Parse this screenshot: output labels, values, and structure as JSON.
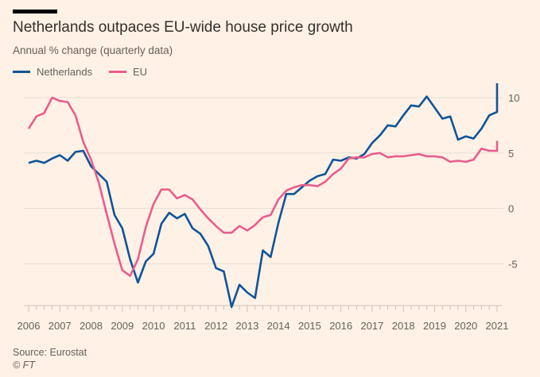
{
  "chart_data": {
    "type": "line",
    "title": "Netherlands outpaces EU-wide house price growth",
    "subtitle": "Annual % change (quarterly data)",
    "xlabel": "",
    "ylabel": "",
    "x_start": 2006,
    "x_step": 0.25,
    "xlim": [
      2006,
      2021
    ],
    "ylim": [
      -9,
      12
    ],
    "x_ticks": [
      "2006",
      "2007",
      "2008",
      "2009",
      "2010",
      "2011",
      "2012",
      "2013",
      "2014",
      "2015",
      "2016",
      "2017",
      "2018",
      "2019",
      "2020",
      "2021"
    ],
    "y_ticks": [
      "10",
      "5",
      "0",
      "-5"
    ],
    "grid": true,
    "legend_position": "top-left",
    "series": [
      {
        "name": "Netherlands",
        "color": "#0f5499",
        "values": [
          4.1,
          4.3,
          4.1,
          4.5,
          4.8,
          4.3,
          5.1,
          5.2,
          3.8,
          3.1,
          2.4,
          -0.6,
          -1.8,
          -4.6,
          -6.7,
          -4.8,
          -4.1,
          -1.4,
          -0.4,
          -0.9,
          -0.5,
          -1.8,
          -2.3,
          -3.4,
          -5.4,
          -5.7,
          -8.9,
          -6.9,
          -7.6,
          -8.1,
          -3.8,
          -4.4,
          -1.3,
          1.3,
          1.3,
          1.9,
          2.5,
          2.9,
          3.1,
          4.4,
          4.3,
          4.6,
          4.5,
          4.9,
          5.9,
          6.6,
          7.5,
          7.4,
          8.4,
          9.3,
          9.2,
          10.1,
          9.1,
          8.1,
          8.3,
          6.2,
          6.5,
          6.3,
          7.2,
          8.4,
          8.7,
          11.3
        ]
      },
      {
        "name": "EU",
        "color": "#e95d8c",
        "values": [
          7.2,
          8.3,
          8.6,
          10.0,
          9.7,
          9.6,
          8.4,
          6.0,
          4.4,
          2.3,
          -0.5,
          -3.2,
          -5.6,
          -6.1,
          -4.6,
          -1.7,
          0.4,
          1.7,
          1.7,
          0.9,
          1.2,
          0.8,
          -0.1,
          -0.9,
          -1.6,
          -2.2,
          -2.2,
          -1.6,
          -2.0,
          -1.5,
          -0.8,
          -0.6,
          0.8,
          1.6,
          1.9,
          2.1,
          2.1,
          2.0,
          2.4,
          3.1,
          3.6,
          4.5,
          4.6,
          4.6,
          4.9,
          5.0,
          4.6,
          4.7,
          4.7,
          4.8,
          4.9,
          4.7,
          4.7,
          4.6,
          4.2,
          4.3,
          4.2,
          4.4,
          5.4,
          5.2,
          5.2,
          5.8,
          6.1
        ]
      }
    ]
  },
  "footer": {
    "source": "Source: Eurostat",
    "credit": "© FT"
  }
}
